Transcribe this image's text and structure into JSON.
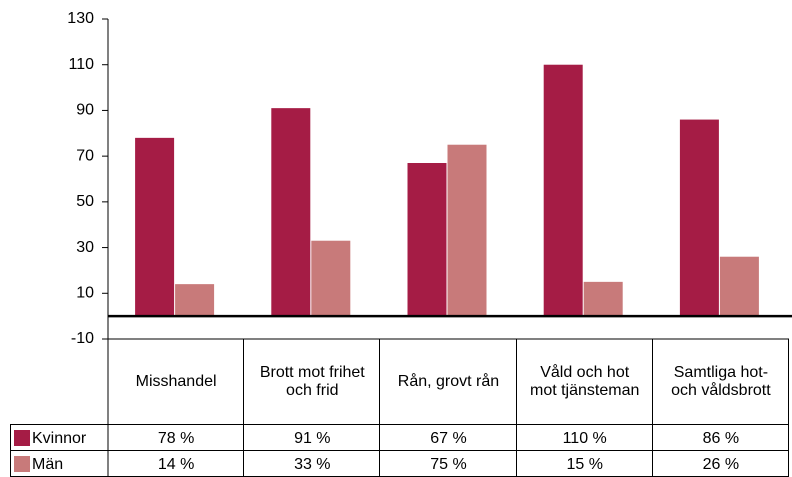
{
  "chart_data": {
    "type": "bar",
    "categories": [
      "Misshandel",
      "Brott mot frihet och frid",
      "Rån, grovt rån",
      "Våld och hot mot tjänsteman",
      "Samtliga hot- och våldsbrott"
    ],
    "series": [
      {
        "name": "Kvinnor",
        "color": "#a51c45",
        "values": [
          78,
          91,
          67,
          110,
          86
        ],
        "value_labels": [
          "78 %",
          "91 %",
          "67 %",
          "110 %",
          "86 %"
        ]
      },
      {
        "name": "Män",
        "color": "#c87a7a",
        "values": [
          14,
          33,
          75,
          15,
          26
        ],
        "value_labels": [
          "14 %",
          "33 %",
          "75 %",
          "15 %",
          "26 %"
        ]
      }
    ],
    "ylim": [
      -10,
      130
    ],
    "yticks": [
      -10,
      10,
      30,
      50,
      70,
      90,
      110,
      130
    ],
    "grid": false
  }
}
